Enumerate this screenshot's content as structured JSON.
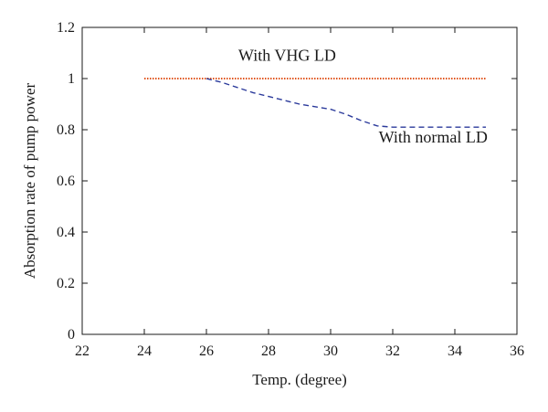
{
  "chart_data": {
    "type": "line",
    "xlabel": "Temp. (degree)",
    "ylabel": "Absorption rate of pump power",
    "xlim": [
      22,
      36
    ],
    "ylim": [
      0,
      1.2
    ],
    "xticks": [
      "22",
      "24",
      "26",
      "28",
      "30",
      "32",
      "34",
      "36"
    ],
    "yticks": [
      "0",
      "0.2",
      "0.4",
      "0.6",
      "0.8",
      "1",
      "1.2"
    ],
    "grid": false,
    "series": [
      {
        "name": "With VHG LD",
        "color": "#e0541e",
        "style": "dotted",
        "x": [
          24,
          35
        ],
        "y": [
          1.0,
          1.0
        ]
      },
      {
        "name": "With normal LD",
        "color": "#2b3a9b",
        "style": "dashed",
        "x": [
          26,
          26.5,
          27,
          27.5,
          28,
          28.5,
          29,
          29.5,
          30,
          30.5,
          31,
          31.5,
          32,
          33,
          34,
          35
        ],
        "y": [
          1.0,
          0.985,
          0.965,
          0.945,
          0.93,
          0.915,
          0.9,
          0.89,
          0.88,
          0.86,
          0.835,
          0.815,
          0.81,
          0.81,
          0.81,
          0.81
        ]
      }
    ],
    "annotations": [
      {
        "text": "With VHG LD",
        "x": 28.6,
        "y": 1.07
      },
      {
        "text": "With normal LD",
        "x": 33.3,
        "y": 0.75
      }
    ]
  }
}
